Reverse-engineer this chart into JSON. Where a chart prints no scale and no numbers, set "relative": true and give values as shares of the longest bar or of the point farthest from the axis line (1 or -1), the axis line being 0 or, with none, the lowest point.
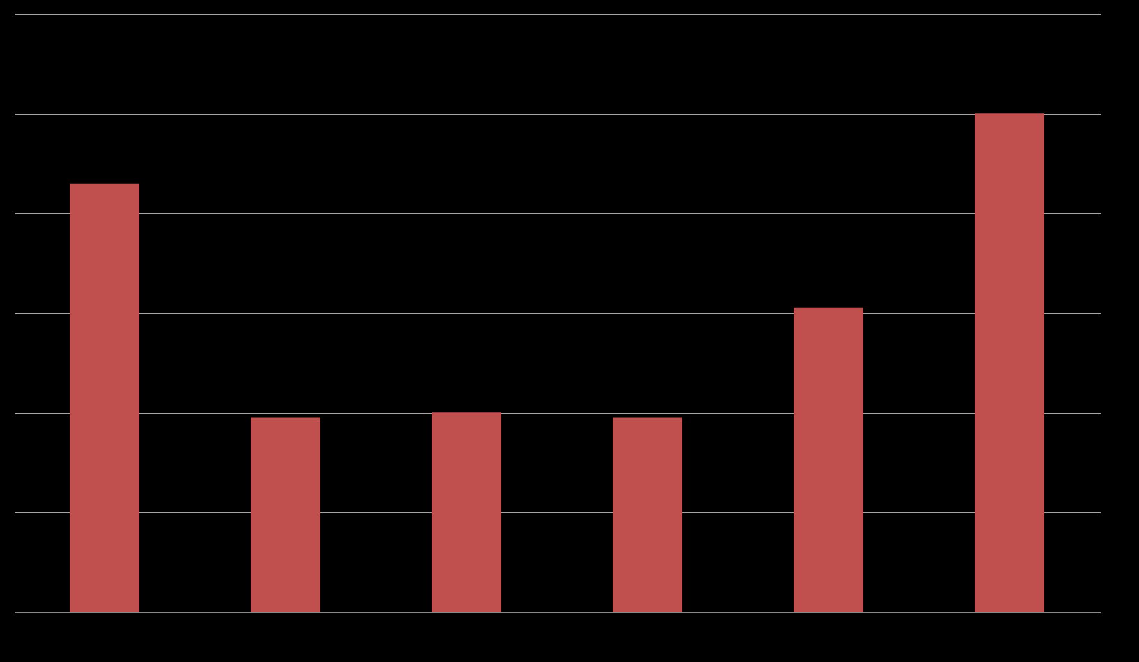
{
  "chart_data": {
    "type": "bar",
    "relative": true,
    "categories": [
      null,
      null,
      null,
      null,
      null,
      null
    ],
    "values": [
      0.86,
      0.39,
      0.4,
      0.39,
      0.61,
      1
    ],
    "color": "#c0504d",
    "grid": "y"
  }
}
